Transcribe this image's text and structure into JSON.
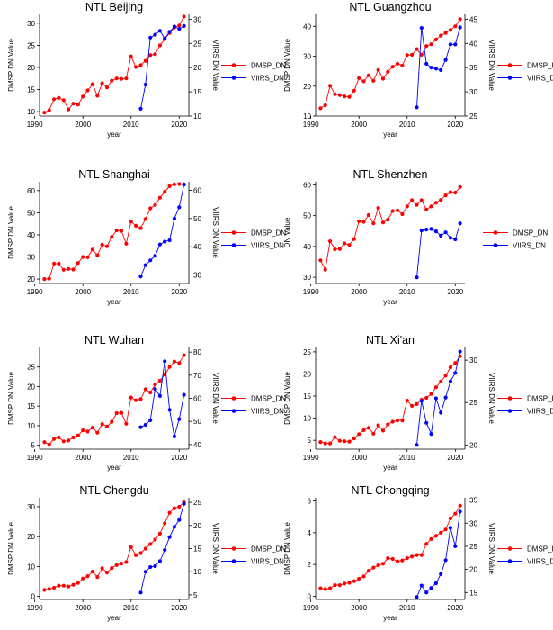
{
  "figure": {
    "style": {
      "dmsp_color": "#ff0000",
      "viirs_color": "#0000ff",
      "axis_color": "#000000"
    }
  },
  "chart_data": [
    {
      "type": "line",
      "title": "NTL Beijing",
      "xlabel": "year",
      "ylabel": "DMSP DN Value",
      "y2label": "VIIRS DN Value",
      "xlim": [
        1991,
        2022
      ],
      "ylim": [
        9,
        32
      ],
      "y2lim": [
        10,
        31
      ],
      "xticks": [
        1990,
        2000,
        2010,
        2020
      ],
      "yticks": [
        10,
        15,
        20,
        25,
        30
      ],
      "y2ticks": [
        10,
        15,
        20,
        25,
        30
      ],
      "legend": "right",
      "grid": false,
      "series": [
        {
          "name": "DMSP_DN",
          "axis": "left",
          "x": [
            1992,
            1993,
            1994,
            1995,
            1996,
            1997,
            1998,
            1999,
            2000,
            2001,
            2002,
            2003,
            2004,
            2005,
            2006,
            2007,
            2008,
            2009,
            2010,
            2011,
            2012,
            2013,
            2014,
            2015,
            2016,
            2017,
            2018,
            2019,
            2020,
            2021
          ],
          "y": [
            9.8,
            10.3,
            12.8,
            13.1,
            12.6,
            10.5,
            11.8,
            11.6,
            13.4,
            14.8,
            16.2,
            13.6,
            16.4,
            15.5,
            17.0,
            17.5,
            17.4,
            17.5,
            22.5,
            20.1,
            20.5,
            21.5,
            22.8,
            23.0,
            25.0,
            26.4,
            27.8,
            29.0,
            29.5,
            31.5
          ]
        },
        {
          "name": "VIIRS_DN",
          "axis": "right",
          "x": [
            2012,
            2013,
            2014,
            2015,
            2016,
            2017,
            2018,
            2019,
            2020,
            2021
          ],
          "y": [
            11.5,
            16.5,
            26.2,
            26.8,
            27.6,
            26.0,
            27.4,
            28.5,
            28.0,
            28.6
          ]
        }
      ]
    },
    {
      "type": "line",
      "title": "NTL Guangzhou",
      "xlabel": "year",
      "ylabel": "DMSP DN Value",
      "y2label": "VIIRS DN Value",
      "xlim": [
        1991,
        2022
      ],
      "ylim": [
        10,
        44
      ],
      "y2lim": [
        25,
        46
      ],
      "xticks": [
        1990,
        2000,
        2010,
        2020
      ],
      "yticks": [
        10,
        20,
        30,
        40
      ],
      "y2ticks": [
        25,
        30,
        35,
        40,
        45
      ],
      "legend": "right",
      "grid": false,
      "series": [
        {
          "name": "DMSP_DN",
          "axis": "left",
          "x": [
            1992,
            1993,
            1994,
            1995,
            1996,
            1997,
            1998,
            1999,
            2000,
            2001,
            2002,
            2003,
            2004,
            2005,
            2006,
            2007,
            2008,
            2009,
            2010,
            2011,
            2012,
            2013,
            2014,
            2015,
            2016,
            2017,
            2018,
            2019,
            2020,
            2021
          ],
          "y": [
            12.6,
            13.6,
            20.1,
            17.3,
            17.0,
            16.6,
            16.4,
            18.5,
            22.7,
            21.6,
            23.6,
            21.8,
            25.4,
            22.5,
            24.8,
            26.5,
            27.5,
            26.9,
            30.4,
            30.5,
            32.4,
            30.5,
            33.4,
            34.0,
            35.6,
            36.9,
            37.8,
            38.8,
            40.0,
            42.4
          ]
        },
        {
          "name": "VIIRS_DN",
          "axis": "right",
          "x": [
            2012,
            2013,
            2014,
            2015,
            2016,
            2017,
            2018,
            2019,
            2020,
            2021
          ],
          "y": [
            26.8,
            43.2,
            35.8,
            35.0,
            34.8,
            34.5,
            36.6,
            39.8,
            39.8,
            43.3
          ]
        }
      ]
    },
    {
      "type": "line",
      "title": "NTL Shanghai",
      "xlabel": "year",
      "ylabel": "DMSP DN Value",
      "y2label": "VIIRS DN Value",
      "xlim": [
        1991,
        2022
      ],
      "ylim": [
        18,
        64
      ],
      "y2lim": [
        27,
        63
      ],
      "xticks": [
        1990,
        2000,
        2010,
        2020
      ],
      "yticks": [
        20,
        30,
        40,
        50,
        60
      ],
      "y2ticks": [
        30,
        40,
        50,
        60
      ],
      "legend": "right",
      "grid": false,
      "series": [
        {
          "name": "DMSP_DN",
          "axis": "left",
          "x": [
            1992,
            1993,
            1994,
            1995,
            1996,
            1997,
            1998,
            1999,
            2000,
            2001,
            2002,
            2003,
            2004,
            2005,
            2006,
            2007,
            2008,
            2009,
            2010,
            2011,
            2012,
            2013,
            2014,
            2015,
            2016,
            2017,
            2018,
            2019,
            2020,
            2021
          ],
          "y": [
            20.0,
            20.2,
            27.0,
            27.0,
            24.2,
            24.6,
            24.3,
            27.3,
            30.0,
            29.9,
            33.3,
            30.8,
            35.5,
            34.8,
            39.0,
            42.0,
            41.8,
            36.0,
            46.0,
            44.1,
            43.0,
            47.2,
            52.0,
            53.5,
            56.8,
            59.5,
            62.0,
            62.8,
            63.0,
            62.8
          ]
        },
        {
          "name": "VIIRS_DN",
          "axis": "right",
          "x": [
            2012,
            2013,
            2014,
            2015,
            2016,
            2017,
            2018,
            2019,
            2020,
            2021
          ],
          "y": [
            29.5,
            33.5,
            35.2,
            36.8,
            40.8,
            41.8,
            42.3,
            50.0,
            54.0,
            62.0
          ]
        }
      ]
    },
    {
      "type": "line",
      "title": "NTL Shenzhen",
      "xlabel": "year",
      "ylabel": "DN Value",
      "xlim": [
        1991,
        2022
      ],
      "ylim": [
        28,
        61
      ],
      "xticks": [
        1990,
        2000,
        2010,
        2020
      ],
      "yticks": [
        30,
        40,
        50,
        60
      ],
      "legend": "right",
      "grid": false,
      "series": [
        {
          "name": "DMSP_DN",
          "axis": "left",
          "x": [
            1992,
            1993,
            1994,
            1995,
            1996,
            1997,
            1998,
            1999,
            2000,
            2001,
            2002,
            2003,
            2004,
            2005,
            2006,
            2007,
            2008,
            2009,
            2010,
            2011,
            2012,
            2013,
            2014,
            2015,
            2016,
            2017,
            2018,
            2019,
            2020,
            2021
          ],
          "y": [
            35.5,
            32.5,
            41.7,
            39.1,
            39.2,
            41.0,
            40.5,
            42.4,
            48.2,
            48.0,
            50.2,
            47.5,
            52.5,
            47.8,
            48.7,
            51.5,
            51.7,
            50.5,
            53.0,
            55.0,
            53.5,
            55.0,
            52.0,
            53.0,
            54.2,
            55.1,
            56.6,
            57.6,
            57.5,
            59.3
          ]
        },
        {
          "name": "VIIRS_DN",
          "axis": "left",
          "x": [
            2012,
            2013,
            2014,
            2015,
            2016,
            2017,
            2018,
            2019,
            2020,
            2021
          ],
          "y": [
            30.0,
            45.2,
            45.5,
            45.7,
            44.9,
            43.5,
            44.6,
            42.8,
            42.3,
            47.5
          ]
        }
      ]
    },
    {
      "type": "line",
      "title": "NTL Wuhan",
      "xlabel": "year",
      "ylabel": "DMSP DN Value",
      "y2label": "VIIRS DN Value",
      "xlim": [
        1991,
        2022
      ],
      "ylim": [
        4,
        30
      ],
      "y2lim": [
        38,
        82
      ],
      "xticks": [
        1990,
        2000,
        2010,
        2020
      ],
      "yticks": [
        5,
        10,
        15,
        20,
        25
      ],
      "y2ticks": [
        40,
        50,
        60,
        70,
        80
      ],
      "legend": "right",
      "grid": false,
      "series": [
        {
          "name": "DMSP_DN",
          "axis": "left",
          "x": [
            1992,
            1993,
            1994,
            1995,
            1996,
            1997,
            1998,
            1999,
            2000,
            2001,
            2002,
            2003,
            2004,
            2005,
            2006,
            2007,
            2008,
            2009,
            2010,
            2011,
            2012,
            2013,
            2014,
            2015,
            2016,
            2017,
            2018,
            2019,
            2020,
            2021
          ],
          "y": [
            5.8,
            5.2,
            6.6,
            7.0,
            6.0,
            6.2,
            7.0,
            7.5,
            8.8,
            8.5,
            9.5,
            8.2,
            10.4,
            9.8,
            11.0,
            13.2,
            13.3,
            10.5,
            17.2,
            16.5,
            16.8,
            19.3,
            18.5,
            20.5,
            21.5,
            23.1,
            25.0,
            26.4,
            26.0,
            28.0
          ]
        },
        {
          "name": "VIIRS_DN",
          "axis": "right",
          "x": [
            2012,
            2013,
            2014,
            2015,
            2016,
            2017,
            2018,
            2019,
            2020,
            2021
          ],
          "y": [
            47.5,
            48.5,
            50.5,
            64.0,
            61.0,
            76.0,
            55.0,
            43.5,
            51.0,
            61.5
          ]
        }
      ]
    },
    {
      "type": "line",
      "title": "NTL Xi'an",
      "xlabel": "year",
      "ylabel": "DMSP DN Value",
      "y2label": "VIIRS DN Value",
      "xlim": [
        1991,
        2022
      ],
      "ylim": [
        3,
        26
      ],
      "y2lim": [
        19.5,
        31.5
      ],
      "xticks": [
        1990,
        2000,
        2010,
        2020
      ],
      "yticks": [
        5,
        10,
        15,
        20,
        25
      ],
      "y2ticks": [
        20,
        25,
        30
      ],
      "legend": "right",
      "grid": false,
      "series": [
        {
          "name": "DMSP_DN",
          "axis": "left",
          "x": [
            1992,
            1993,
            1994,
            1995,
            1996,
            1997,
            1998,
            1999,
            2000,
            2001,
            2002,
            2003,
            2004,
            2005,
            2006,
            2007,
            2008,
            2009,
            2010,
            2011,
            2012,
            2013,
            2014,
            2015,
            2016,
            2017,
            2018,
            2019,
            2020,
            2021
          ],
          "y": [
            4.6,
            4.3,
            4.3,
            5.7,
            4.9,
            4.8,
            4.7,
            5.4,
            6.4,
            7.3,
            7.8,
            6.5,
            8.4,
            7.2,
            8.6,
            9.2,
            9.5,
            9.5,
            14.0,
            12.8,
            13.2,
            14.2,
            14.6,
            15.5,
            17.0,
            18.3,
            19.6,
            21.5,
            22.5,
            24.0
          ]
        },
        {
          "name": "VIIRS_DN",
          "axis": "right",
          "x": [
            2012,
            2013,
            2014,
            2015,
            2016,
            2017,
            2018,
            2019,
            2020,
            2021
          ],
          "y": [
            20.0,
            25.2,
            22.6,
            21.3,
            25.5,
            23.8,
            25.6,
            27.5,
            28.5,
            31.0
          ]
        }
      ]
    },
    {
      "type": "line",
      "title": "NTL Chengdu",
      "xlabel": "year",
      "ylabel": "DMSP DN Value",
      "y2label": "VIIRS DN Value",
      "xlim": [
        1991,
        2022
      ],
      "ylim": [
        -1,
        33
      ],
      "y2lim": [
        4,
        26
      ],
      "xticks": [
        1990,
        2000,
        2010,
        2020
      ],
      "yticks": [
        0,
        10,
        20,
        30
      ],
      "y2ticks": [
        5,
        10,
        15,
        20,
        25
      ],
      "legend": "right",
      "grid": false,
      "series": [
        {
          "name": "DMSP_DN",
          "axis": "left",
          "x": [
            1992,
            1993,
            1994,
            1995,
            1996,
            1997,
            1998,
            1999,
            2000,
            2001,
            2002,
            2003,
            2004,
            2005,
            2006,
            2007,
            2008,
            2009,
            2010,
            2011,
            2012,
            2013,
            2014,
            2015,
            2016,
            2017,
            2018,
            2019,
            2020,
            2021
          ],
          "y": [
            2.2,
            2.5,
            2.9,
            3.6,
            3.6,
            3.3,
            3.9,
            4.5,
            6.0,
            6.8,
            8.3,
            6.5,
            9.4,
            8.0,
            9.5,
            10.5,
            11.0,
            11.5,
            16.5,
            13.8,
            14.5,
            16.0,
            17.5,
            19.0,
            21.0,
            24.5,
            28.0,
            29.5,
            30.0,
            31.5
          ]
        },
        {
          "name": "VIIRS_DN",
          "axis": "right",
          "x": [
            2012,
            2013,
            2014,
            2015,
            2016,
            2017,
            2018,
            2019,
            2020,
            2021
          ],
          "y": [
            5.5,
            10.0,
            11.0,
            11.2,
            12.3,
            14.7,
            17.5,
            19.7,
            21.2,
            24.7
          ]
        }
      ]
    },
    {
      "type": "line",
      "title": "NTL Chongqing",
      "xlabel": "year",
      "ylabel": "DMSP DN Value",
      "y2label": "VIIRS DN Value",
      "xlim": [
        1991,
        2022
      ],
      "ylim": [
        -0.2,
        6.2
      ],
      "y2lim": [
        13.5,
        35.5
      ],
      "xticks": [
        1990,
        2000,
        2010,
        2020
      ],
      "yticks": [
        0,
        2,
        4,
        6
      ],
      "y2ticks": [
        15,
        20,
        25,
        30,
        35
      ],
      "legend": "right",
      "grid": false,
      "series": [
        {
          "name": "DMSP_DN",
          "axis": "left",
          "x": [
            1992,
            1993,
            1994,
            1995,
            1996,
            1997,
            1998,
            1999,
            2000,
            2001,
            2002,
            2003,
            2004,
            2005,
            2006,
            2007,
            2008,
            2009,
            2010,
            2011,
            2012,
            2013,
            2014,
            2015,
            2016,
            2017,
            2018,
            2019,
            2020,
            2021
          ],
          "y": [
            0.5,
            0.45,
            0.5,
            0.7,
            0.7,
            0.8,
            0.85,
            0.95,
            1.1,
            1.25,
            1.6,
            1.8,
            1.95,
            2.05,
            2.4,
            2.35,
            2.2,
            2.25,
            2.4,
            2.5,
            2.6,
            2.6,
            3.3,
            3.6,
            3.8,
            4.0,
            4.2,
            4.9,
            5.2,
            5.7
          ]
        },
        {
          "name": "VIIRS_DN",
          "axis": "right",
          "x": [
            2012,
            2013,
            2014,
            2015,
            2016,
            2017,
            2018,
            2019,
            2020,
            2021
          ],
          "y": [
            14.0,
            16.5,
            15.0,
            16.0,
            17.0,
            19.0,
            22.0,
            29.0,
            25.0,
            32.5
          ]
        }
      ]
    }
  ]
}
